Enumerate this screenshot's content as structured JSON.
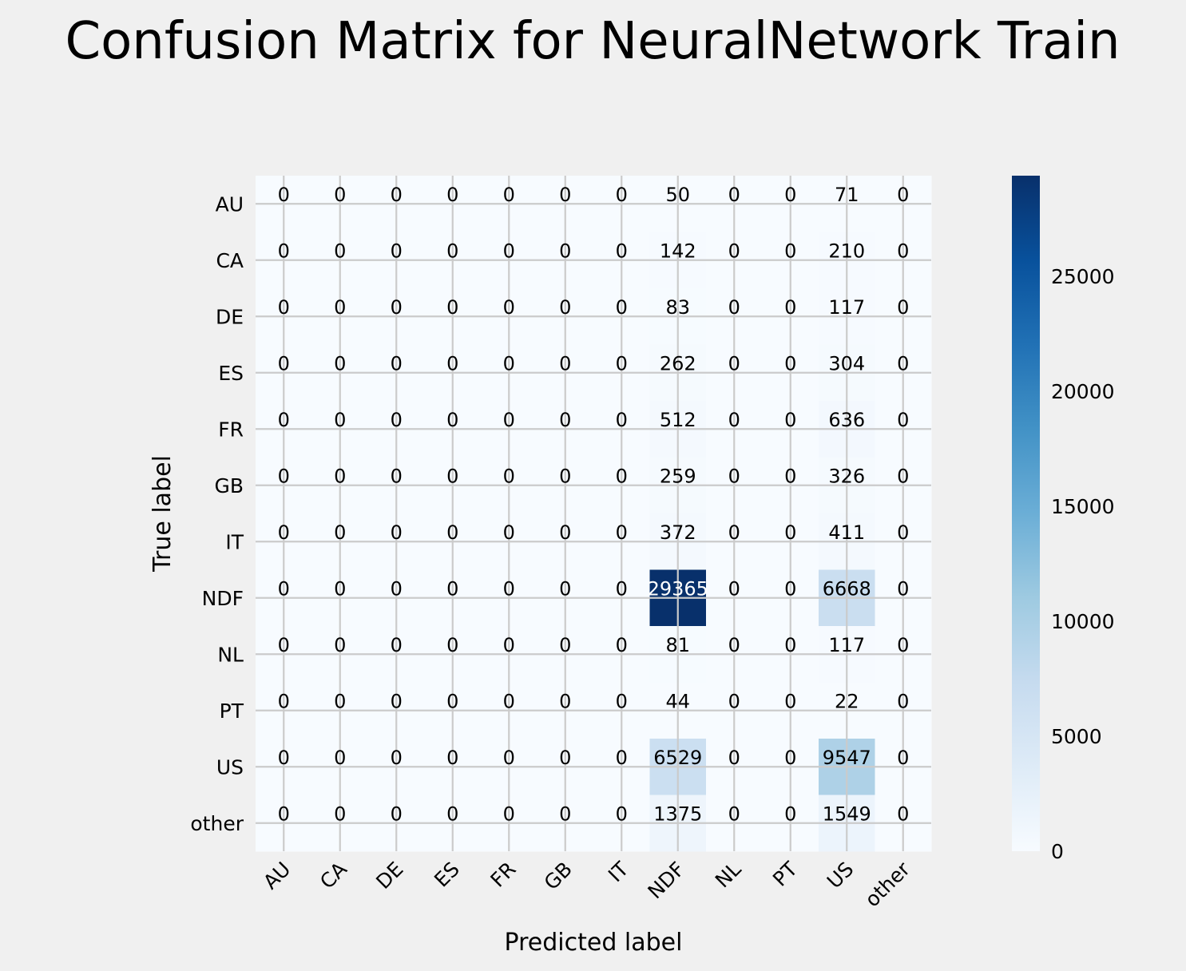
{
  "chart_data": {
    "type": "heatmap",
    "title": "Confusion Matrix for NeuralNetwork Train",
    "xlabel": "Predicted label",
    "ylabel": "True label",
    "x_categories": [
      "AU",
      "CA",
      "DE",
      "ES",
      "FR",
      "GB",
      "IT",
      "NDF",
      "NL",
      "PT",
      "US",
      "other"
    ],
    "y_categories": [
      "AU",
      "CA",
      "DE",
      "ES",
      "FR",
      "GB",
      "IT",
      "NDF",
      "NL",
      "PT",
      "US",
      "other"
    ],
    "values": [
      [
        0,
        0,
        0,
        0,
        0,
        0,
        0,
        50,
        0,
        0,
        71,
        0
      ],
      [
        0,
        0,
        0,
        0,
        0,
        0,
        0,
        142,
        0,
        0,
        210,
        0
      ],
      [
        0,
        0,
        0,
        0,
        0,
        0,
        0,
        83,
        0,
        0,
        117,
        0
      ],
      [
        0,
        0,
        0,
        0,
        0,
        0,
        0,
        262,
        0,
        0,
        304,
        0
      ],
      [
        0,
        0,
        0,
        0,
        0,
        0,
        0,
        512,
        0,
        0,
        636,
        0
      ],
      [
        0,
        0,
        0,
        0,
        0,
        0,
        0,
        259,
        0,
        0,
        326,
        0
      ],
      [
        0,
        0,
        0,
        0,
        0,
        0,
        0,
        372,
        0,
        0,
        411,
        0
      ],
      [
        0,
        0,
        0,
        0,
        0,
        0,
        0,
        29365,
        0,
        0,
        6668,
        0
      ],
      [
        0,
        0,
        0,
        0,
        0,
        0,
        0,
        81,
        0,
        0,
        117,
        0
      ],
      [
        0,
        0,
        0,
        0,
        0,
        0,
        0,
        44,
        0,
        0,
        22,
        0
      ],
      [
        0,
        0,
        0,
        0,
        0,
        0,
        0,
        6529,
        0,
        0,
        9547,
        0
      ],
      [
        0,
        0,
        0,
        0,
        0,
        0,
        0,
        1375,
        0,
        0,
        1549,
        0
      ]
    ],
    "colorscale": "Blues",
    "vmin": 0,
    "vmax": 29365,
    "colorbar_ticks": [
      0,
      5000,
      10000,
      15000,
      20000,
      25000
    ],
    "grid": true,
    "colors": {
      "low": "#f7fbff",
      "high": "#08306b",
      "background": "#f0f0f0",
      "grid": "#cbcbcb"
    }
  }
}
